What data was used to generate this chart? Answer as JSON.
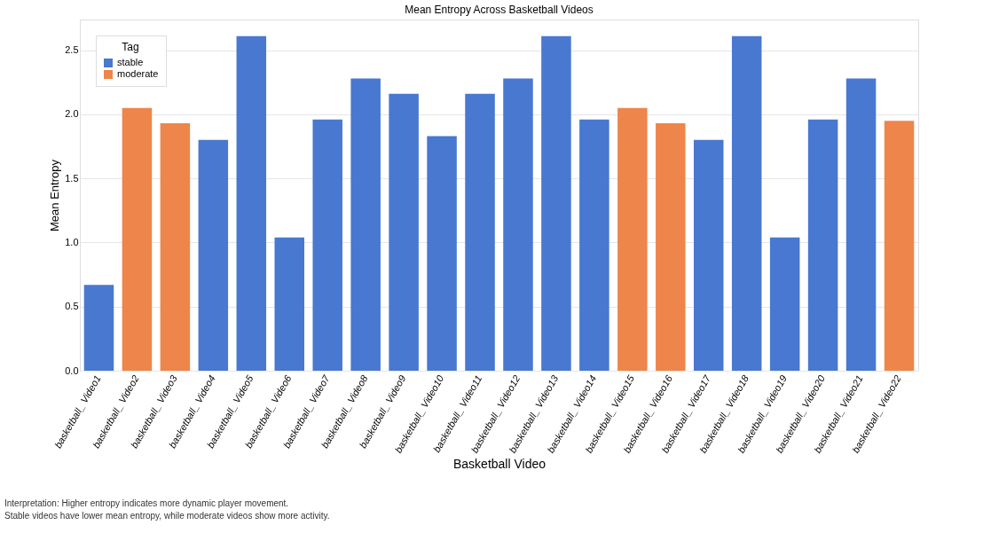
{
  "chart_data": {
    "type": "bar",
    "title": "Mean Entropy Across Basketball Videos",
    "xlabel": "Basketball Video",
    "ylabel": "Mean Entropy",
    "legend_title": "Tag",
    "categories": [
      "basketball_ Video1",
      "basketball_ Video2",
      "basketball_ Video3",
      "basketball_ Video4",
      "basketball_ Video5",
      "basketball_ Video6",
      "basketball_ Video7",
      "basketball_ Video8",
      "basketball_ Video9",
      "basketball_ Video10",
      "basketball_ Video11",
      "basketball_ Video12",
      "basketball_ Video13",
      "basketball_ Video14",
      "basketball_ Video15",
      "basketball_ Video16",
      "basketball_ Video17",
      "basketball_ Video18",
      "basketball_ Video19",
      "basketball_ Video20",
      "basketball_ Video21",
      "basketball_ Video22"
    ],
    "series": [
      {
        "name": "stable",
        "color": "#4878d0",
        "values": [
          0.67,
          null,
          null,
          1.8,
          2.61,
          1.04,
          1.96,
          2.28,
          2.16,
          1.83,
          2.16,
          2.28,
          2.61,
          1.96,
          null,
          null,
          1.8,
          2.61,
          1.04,
          1.96,
          2.28,
          null
        ]
      },
      {
        "name": "moderate",
        "color": "#ee854a",
        "values": [
          null,
          2.05,
          1.93,
          null,
          null,
          null,
          null,
          null,
          null,
          null,
          null,
          null,
          null,
          null,
          2.05,
          1.93,
          null,
          null,
          null,
          null,
          null,
          1.95
        ]
      }
    ],
    "ylim": [
      0,
      2.74
    ],
    "yticks": [
      {
        "value": 0,
        "label": "0.0"
      },
      0.5,
      {
        "value": 1,
        "label": "1.0"
      },
      1.5,
      {
        "value": 2,
        "label": "2.0"
      },
      2.5
    ],
    "grid": "y",
    "legend": "top left",
    "annotations": [
      "Interpretation: Higher entropy indicates more dynamic player movement.",
      "Stable videos have lower mean entropy, while moderate videos show more activity."
    ]
  }
}
